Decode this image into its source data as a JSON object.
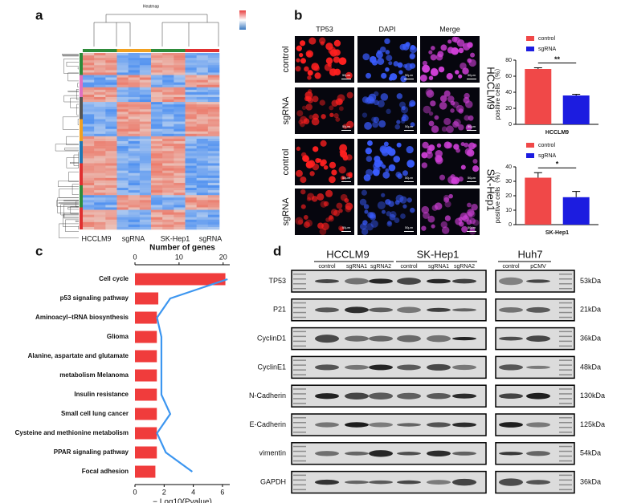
{
  "panels": [
    "a",
    "b",
    "c",
    "d"
  ],
  "heatmap": {
    "title": "Heatmap",
    "column_labels": [
      "HCCLM9",
      "sgRNA",
      "SK-Hep1",
      "sgRNA"
    ]
  },
  "microscopy": {
    "columns": [
      "TP53",
      "DAPI",
      "Merge"
    ],
    "rows": [
      "control",
      "sgRNA",
      "control",
      "sgRNA"
    ],
    "cell_lines": [
      "HCCLM9",
      "SK-Hep1"
    ],
    "scale_bar": "50μm"
  },
  "western": {
    "groups": [
      {
        "label": "HCCLM9",
        "lanes": [
          "control",
          "sgRNA1",
          "sgRNA2"
        ]
      },
      {
        "label": "SK-Hep1",
        "lanes": [
          "control",
          "sgRNA1",
          "sgRNA2"
        ]
      },
      {
        "label": "Huh7",
        "lanes": [
          "control",
          "pCMV"
        ]
      }
    ],
    "rows": [
      {
        "label": "TP53",
        "size": "53kDa"
      },
      {
        "label": "P21",
        "size": "21kDa"
      },
      {
        "label": "CyclinD1",
        "size": "36kDa"
      },
      {
        "label": "CyclinE1",
        "size": "48kDa"
      },
      {
        "label": "N-Cadherin",
        "size": "130kDa"
      },
      {
        "label": "E-Cadherin",
        "size": "125kDa"
      },
      {
        "label": "vimentin",
        "size": "54kDa"
      },
      {
        "label": "GAPDH",
        "size": "36kDa"
      }
    ]
  },
  "chart_data": [
    {
      "type": "bar",
      "categories": [
        "HCCLM9"
      ],
      "ylabel": "positive cells（%）",
      "series": [
        {
          "name": "control",
          "color": "#f04848",
          "values": [
            69
          ],
          "errors": [
            1.5
          ]
        },
        {
          "name": "sgRNA",
          "color": "#1c1ce0",
          "values": [
            36
          ],
          "errors": [
            1.5
          ]
        }
      ],
      "ylim": [
        0,
        80
      ],
      "yticks": [
        0,
        20,
        40,
        60,
        80
      ],
      "annotation": "**"
    },
    {
      "type": "bar",
      "categories": [
        "SK-Hep1"
      ],
      "ylabel": "positive cells（%）",
      "series": [
        {
          "name": "control",
          "color": "#f04848",
          "values": [
            32.5
          ],
          "errors": [
            3.5
          ]
        },
        {
          "name": "sgRNA",
          "color": "#1c1ce0",
          "values": [
            19
          ],
          "errors": [
            4
          ]
        }
      ],
      "ylim": [
        0,
        40
      ],
      "yticks": [
        0,
        10,
        20,
        30,
        40
      ],
      "annotation": "*"
    },
    {
      "type": "bar_line",
      "categories": [
        "Cell cycle",
        "p53 signaling pathway",
        "Aminoacyl−tRNA biosynthesis",
        "Glioma",
        "Alanine, aspartate and glutamate",
        "metabolism Melanoma",
        "Insulin resistance",
        "Small cell lung cancer",
        "Cysteine and methionine metabolism",
        "PPAR signaling pathway",
        "Focal adhesion"
      ],
      "values": [
        6.2,
        1.6,
        1.5,
        1.5,
        1.5,
        1.5,
        1.5,
        1.5,
        1.5,
        1.5,
        1.4
      ],
      "color": "#f03c3c",
      "line_values": [
        21,
        8,
        5,
        6,
        6,
        6,
        6,
        8,
        5,
        7,
        13
      ],
      "line_color": "#3c96f0",
      "xlabel": "− Log10(Pvalue)",
      "xlim": [
        0,
        6.5
      ],
      "xticks": [
        0,
        2,
        4,
        6
      ],
      "x2label": "Number of genes",
      "x2lim": [
        0,
        21.5
      ],
      "x2ticks": [
        0,
        10,
        20
      ]
    }
  ]
}
